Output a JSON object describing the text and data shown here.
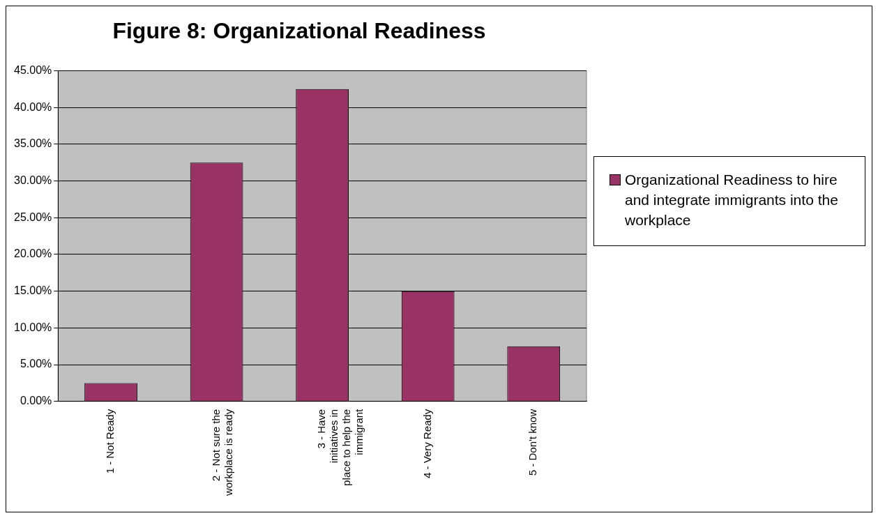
{
  "chart_data": {
    "type": "bar",
    "title": "Figure 8: Organizational Readiness",
    "categories": [
      "1 - Not Ready",
      "2 - Not sure the workplace is ready",
      "3 - Have initiatives in place to help the immigrant",
      "4 - Very Ready",
      "5 - Don't know"
    ],
    "series": [
      {
        "name": "Organizational Readiness to hire and integrate immigrants into the workplace",
        "color": "#993366",
        "values": [
          2.5,
          32.5,
          42.5,
          15,
          7.5
        ]
      }
    ],
    "ylim": [
      0,
      45
    ],
    "yticks": [
      {
        "value": 0,
        "label": "0.00%"
      },
      {
        "value": 5,
        "label": "5.00%"
      },
      {
        "value": 10,
        "label": "10.00%"
      },
      {
        "value": 15,
        "label": "15.00%"
      },
      {
        "value": 20,
        "label": "20.00%"
      },
      {
        "value": 25,
        "label": "25.00%"
      },
      {
        "value": 30,
        "label": "30.00%"
      },
      {
        "value": 35,
        "label": "35.00%"
      },
      {
        "value": 40,
        "label": "40.00%"
      },
      {
        "value": 45,
        "label": "45.00%"
      }
    ],
    "grid": "y",
    "legend": "right"
  }
}
